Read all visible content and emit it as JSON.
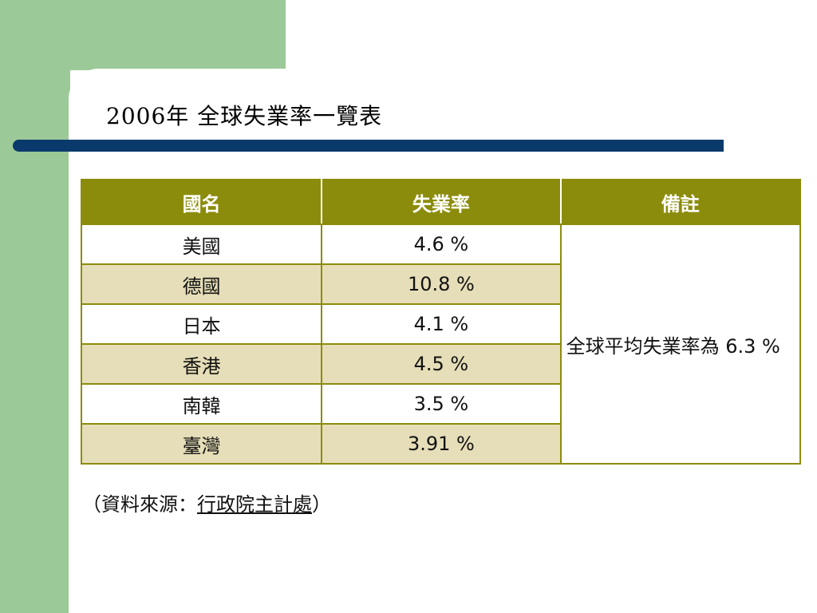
{
  "slide": {
    "title": "2006年 全球失業率一覽表"
  },
  "table": {
    "headers": [
      "國名",
      "失業率",
      "備註"
    ],
    "rows": [
      {
        "country": "美國",
        "rate": "4.6 %"
      },
      {
        "country": "德國",
        "rate": "10.8 %"
      },
      {
        "country": "日本",
        "rate": "4.1 %"
      },
      {
        "country": "香港",
        "rate": "4.5 %"
      },
      {
        "country": "南韓",
        "rate": "3.5 %"
      },
      {
        "country": "臺灣",
        "rate": "3.91 %"
      }
    ],
    "note": "全球平均失業率為 6.3 %"
  },
  "source": {
    "prefix": "（資料來源：",
    "agency": "行政院主計處",
    "suffix": "）"
  },
  "colors": {
    "background_green": "#9cc998",
    "title_bar": "#0a3a6b",
    "header_olive": "#8c8c0c",
    "row_alt": "#e6deb8"
  }
}
